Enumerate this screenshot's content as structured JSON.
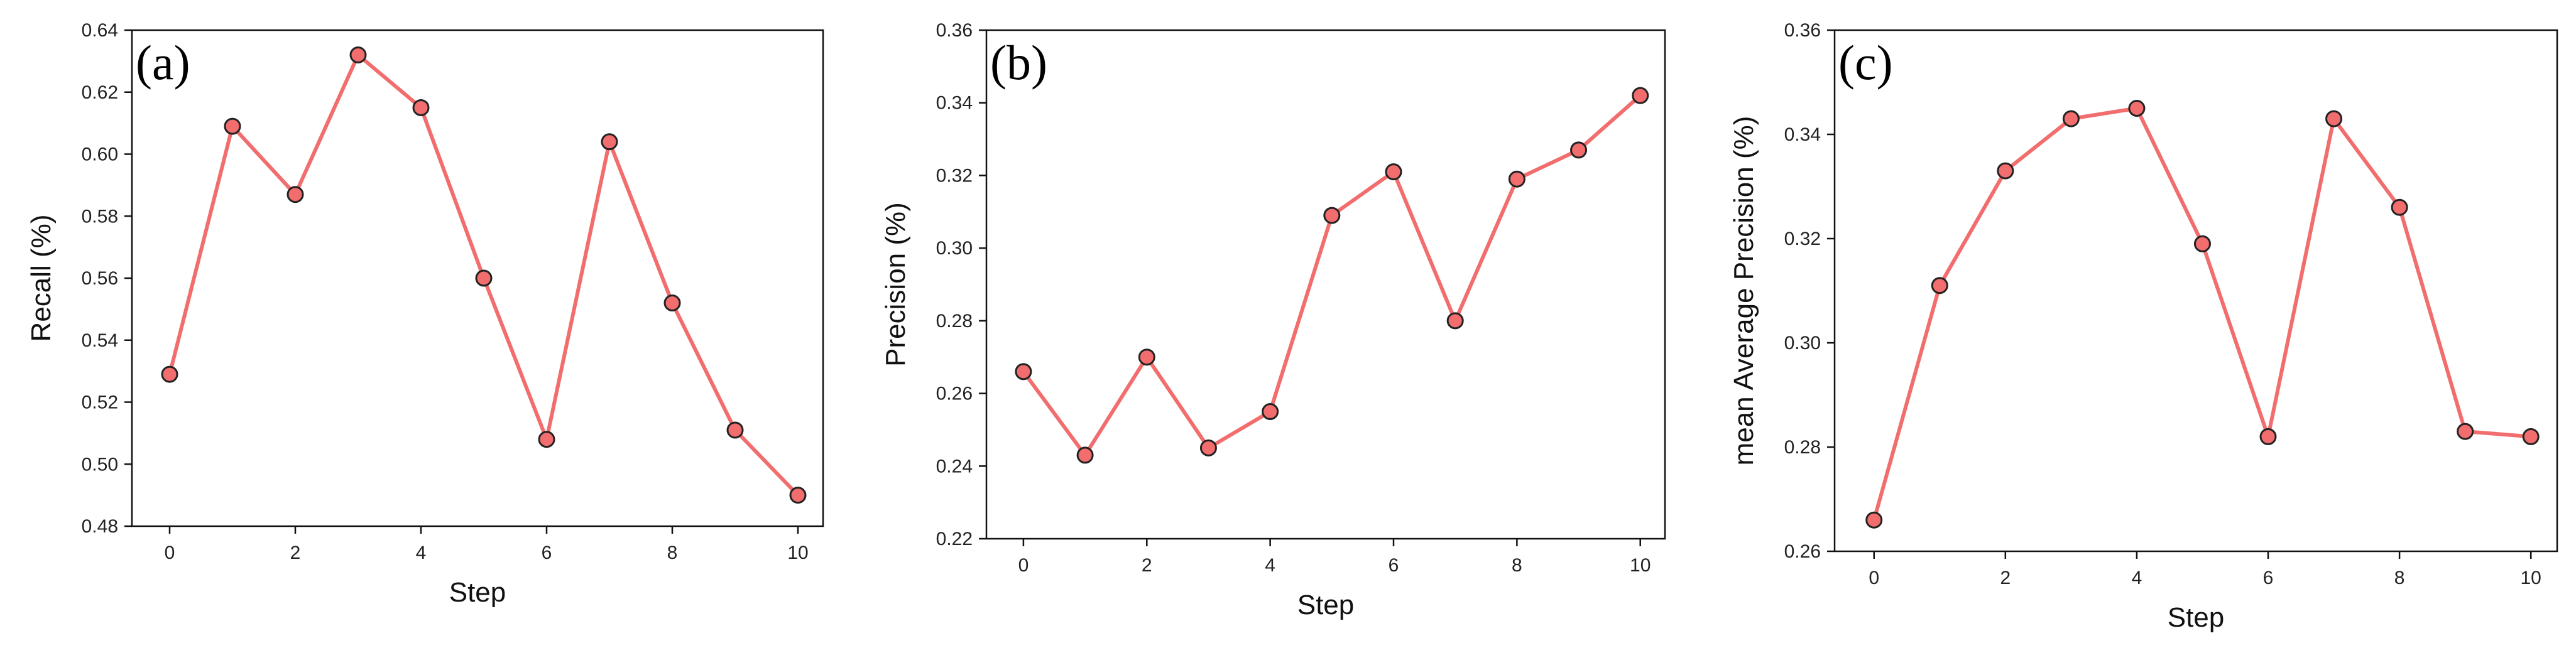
{
  "colors": {
    "line": "#f26d6d",
    "marker_fill": "#f26d6d",
    "marker_edge": "#222222",
    "axis": "#111111"
  },
  "chart_data": [
    {
      "type": "line",
      "panel_label": "(a)",
      "title": "",
      "xlabel": "Step",
      "ylabel": "Recall (%)",
      "x": [
        0,
        1,
        2,
        3,
        4,
        5,
        6,
        7,
        8,
        9,
        10
      ],
      "values": [
        0.529,
        0.609,
        0.587,
        0.632,
        0.615,
        0.56,
        0.508,
        0.604,
        0.552,
        0.511,
        0.49
      ],
      "xlim": [
        -0.6,
        10.4
      ],
      "ylim": [
        0.48,
        0.64
      ],
      "xticks": [
        0,
        2,
        4,
        6,
        8,
        10
      ],
      "xtick_labels": [
        "0",
        "2",
        "4",
        "6",
        "8",
        "10"
      ],
      "yticks": [
        0.48,
        0.5,
        0.52,
        0.54,
        0.56,
        0.58,
        0.6,
        0.62,
        0.64
      ],
      "ytick_labels": [
        "0.48",
        "0.50",
        "0.52",
        "0.54",
        "0.56",
        "0.58",
        "0.60",
        "0.62",
        "0.64"
      ],
      "grid": false,
      "legend": "none"
    },
    {
      "type": "line",
      "panel_label": "(b)",
      "title": "",
      "xlabel": "Step",
      "ylabel": "Precision (%)",
      "x": [
        0,
        1,
        2,
        3,
        4,
        5,
        6,
        7,
        8,
        9,
        10
      ],
      "values": [
        0.266,
        0.243,
        0.27,
        0.245,
        0.255,
        0.309,
        0.321,
        0.28,
        0.319,
        0.327,
        0.342
      ],
      "xlim": [
        -0.6,
        10.4
      ],
      "ylim": [
        0.22,
        0.36
      ],
      "xticks": [
        0,
        2,
        4,
        6,
        8,
        10
      ],
      "xtick_labels": [
        "0",
        "2",
        "4",
        "6",
        "8",
        "10"
      ],
      "yticks": [
        0.22,
        0.24,
        0.26,
        0.28,
        0.3,
        0.32,
        0.34,
        0.36
      ],
      "ytick_labels": [
        "0.22",
        "0.24",
        "0.26",
        "0.28",
        "0.30",
        "0.32",
        "0.34",
        "0.36"
      ],
      "grid": false,
      "legend": "none"
    },
    {
      "type": "line",
      "panel_label": "(c)",
      "title": "",
      "xlabel": "Step",
      "ylabel": "mean Average Precision (%)",
      "x": [
        0,
        1,
        2,
        3,
        4,
        5,
        6,
        7,
        8,
        9,
        10
      ],
      "values": [
        0.266,
        0.311,
        0.333,
        0.343,
        0.345,
        0.319,
        0.282,
        0.343,
        0.326,
        0.283,
        0.282
      ],
      "xlim": [
        -0.6,
        10.4
      ],
      "ylim": [
        0.26,
        0.36
      ],
      "xticks": [
        0,
        2,
        4,
        6,
        8,
        10
      ],
      "xtick_labels": [
        "0",
        "2",
        "4",
        "6",
        "8",
        "10"
      ],
      "yticks": [
        0.26,
        0.28,
        0.3,
        0.32,
        0.34,
        0.36
      ],
      "ytick_labels": [
        "0.26",
        "0.28",
        "0.30",
        "0.32",
        "0.34",
        "0.36"
      ],
      "grid": false,
      "legend": "none"
    }
  ]
}
